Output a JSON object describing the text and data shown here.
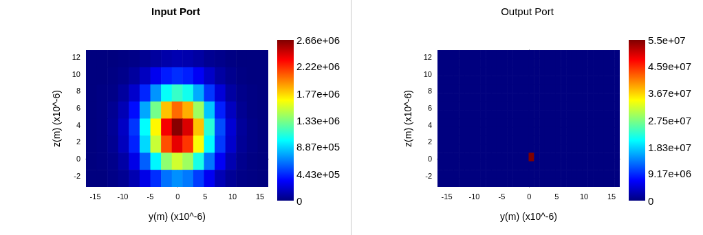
{
  "chart_data": [
    {
      "type": "heatmap",
      "title": "Input Port",
      "xlabel": "y(m) (x10^-6)",
      "ylabel": "z(m) (x10^-6)",
      "xlim": [
        -16.7,
        16.5
      ],
      "xticks": [
        -15,
        -10,
        -5,
        0,
        5,
        10,
        15
      ],
      "ylim": [
        -3.3,
        12.8
      ],
      "yticks": [
        -2,
        0,
        2,
        4,
        6,
        8,
        10,
        12
      ],
      "clim": [
        0,
        2660000
      ],
      "cticks": [
        {
          "value": 0,
          "label": "0"
        },
        {
          "value": 443000,
          "label": "4.43e+05"
        },
        {
          "value": 887000,
          "label": "8.87e+05"
        },
        {
          "value": 1330000,
          "label": "1.33e+06"
        },
        {
          "value": 1770000,
          "label": "1.77e+06"
        },
        {
          "value": 2220000,
          "label": "2.22e+06"
        },
        {
          "value": 2660000,
          "label": "2.66e+06"
        }
      ],
      "cells": [
        [
          0,
          0,
          0,
          10000,
          20000,
          50000,
          80000,
          110000,
          130000,
          120000,
          90000,
          50000,
          30000,
          10000,
          0,
          0,
          0
        ],
        [
          0,
          0,
          10000,
          30000,
          80000,
          170000,
          290000,
          400000,
          450000,
          410000,
          310000,
          190000,
          90000,
          40000,
          10000,
          0,
          0
        ],
        [
          0,
          10000,
          20000,
          80000,
          200000,
          430000,
          720000,
          1010000,
          1140000,
          1040000,
          780000,
          470000,
          230000,
          90000,
          30000,
          10000,
          0
        ],
        [
          0,
          10000,
          50000,
          140000,
          360000,
          770000,
          1300000,
          1820000,
          2050000,
          1870000,
          1410000,
          850000,
          410000,
          170000,
          50000,
          10000,
          0
        ],
        [
          0,
          10000,
          60000,
          180000,
          470000,
          1000000,
          1680000,
          2350000,
          2640000,
          2420000,
          1820000,
          1100000,
          530000,
          220000,
          70000,
          20000,
          0
        ],
        [
          0,
          10000,
          50000,
          160000,
          420000,
          900000,
          1520000,
          2120000,
          2390000,
          2190000,
          1650000,
          990000,
          480000,
          200000,
          60000,
          20000,
          0
        ],
        [
          0,
          10000,
          30000,
          100000,
          270000,
          580000,
          980000,
          1370000,
          1540000,
          1410000,
          1060000,
          640000,
          310000,
          130000,
          40000,
          10000,
          0
        ],
        [
          0,
          0,
          20000,
          50000,
          130000,
          270000,
          450000,
          630000,
          710000,
          650000,
          490000,
          300000,
          140000,
          60000,
          20000,
          10000,
          0
        ]
      ]
    },
    {
      "type": "heatmap",
      "title": "Output Port",
      "xlabel": "y(m) (x10^-6)",
      "ylabel": "z(m) (x10^-6)",
      "xlim": [
        -16.7,
        16.5
      ],
      "xticks": [
        -15,
        -10,
        -5,
        0,
        5,
        10,
        15
      ],
      "ylim": [
        -3.3,
        12.8
      ],
      "yticks": [
        -2,
        0,
        2,
        4,
        6,
        8,
        10,
        12
      ],
      "clim": [
        0,
        55000000
      ],
      "cticks": [
        {
          "value": 0,
          "label": "0"
        },
        {
          "value": 9170000,
          "label": "9.17e+06"
        },
        {
          "value": 18300000,
          "label": "1.83e+07"
        },
        {
          "value": 27500000,
          "label": "2.75e+07"
        },
        {
          "value": 36700000,
          "label": "3.67e+07"
        },
        {
          "value": 45900000,
          "label": "4.59e+07"
        },
        {
          "value": 55000000,
          "label": "5.5e+07"
        }
      ],
      "cells": [
        [
          0,
          0,
          0,
          0,
          0,
          0,
          0,
          0,
          0,
          0,
          0,
          0,
          0,
          0,
          0,
          0,
          0,
          0,
          0,
          0,
          0,
          0,
          0,
          0,
          0,
          0,
          0,
          0,
          0,
          0,
          0,
          0,
          0,
          0
        ],
        [
          0,
          0,
          0,
          0,
          0,
          0,
          0,
          0,
          0,
          0,
          0,
          0,
          0,
          0,
          0,
          0,
          0,
          0,
          0,
          0,
          0,
          0,
          0,
          0,
          0,
          0,
          0,
          0,
          0,
          0,
          0,
          0,
          0,
          0
        ],
        [
          0,
          0,
          0,
          0,
          0,
          0,
          0,
          0,
          0,
          0,
          0,
          0,
          0,
          0,
          0,
          0,
          0,
          0,
          0,
          0,
          0,
          0,
          0,
          0,
          0,
          0,
          0,
          0,
          0,
          0,
          0,
          0,
          0,
          0
        ],
        [
          0,
          0,
          0,
          0,
          0,
          0,
          0,
          0,
          0,
          0,
          0,
          0,
          0,
          0,
          0,
          0,
          0,
          0,
          0,
          0,
          0,
          0,
          0,
          0,
          0,
          0,
          0,
          0,
          0,
          0,
          0,
          0,
          0,
          0
        ],
        [
          0,
          0,
          0,
          0,
          0,
          0,
          0,
          0,
          0,
          0,
          0,
          0,
          0,
          0,
          0,
          0,
          0,
          0,
          0,
          0,
          0,
          0,
          0,
          0,
          0,
          0,
          0,
          0,
          0,
          0,
          0,
          0,
          0,
          0
        ],
        [
          0,
          0,
          0,
          0,
          0,
          0,
          0,
          0,
          0,
          0,
          0,
          0,
          0,
          0,
          0,
          0,
          0,
          0,
          0,
          0,
          0,
          0,
          0,
          0,
          0,
          0,
          0,
          0,
          0,
          0,
          0,
          0,
          0,
          0
        ],
        [
          0,
          0,
          0,
          0,
          0,
          0,
          0,
          0,
          0,
          0,
          0,
          0,
          0,
          0,
          0,
          0,
          0,
          0,
          0,
          0,
          0,
          0,
          0,
          0,
          0,
          0,
          0,
          0,
          0,
          0,
          0,
          0,
          0,
          0
        ],
        [
          0,
          0,
          0,
          0,
          0,
          0,
          0,
          0,
          0,
          0,
          0,
          0,
          0,
          0,
          0,
          0,
          0,
          0,
          0,
          0,
          0,
          0,
          0,
          0,
          0,
          0,
          0,
          0,
          0,
          0,
          0,
          0,
          0,
          0
        ],
        [
          0,
          0,
          0,
          0,
          0,
          0,
          0,
          0,
          0,
          0,
          0,
          0,
          0,
          0,
          0,
          0,
          0,
          0,
          0,
          0,
          0,
          0,
          0,
          0,
          0,
          0,
          0,
          0,
          0,
          0,
          0,
          0,
          0,
          0
        ],
        [
          0,
          0,
          0,
          0,
          0,
          0,
          0,
          0,
          0,
          0,
          0,
          0,
          0,
          0,
          0,
          0,
          0,
          0,
          0,
          0,
          0,
          0,
          0,
          0,
          0,
          0,
          0,
          0,
          0,
          0,
          0,
          0,
          0,
          0
        ],
        [
          0,
          0,
          0,
          0,
          0,
          0,
          0,
          0,
          0,
          0,
          0,
          0,
          0,
          0,
          0,
          0,
          0,
          0,
          0,
          0,
          0,
          0,
          0,
          0,
          0,
          0,
          0,
          0,
          0,
          0,
          0,
          0,
          0,
          0
        ],
        [
          0,
          0,
          0,
          0,
          0,
          0,
          0,
          0,
          0,
          0,
          0,
          0,
          0,
          0,
          0,
          0,
          0,
          0,
          0,
          0,
          0,
          0,
          0,
          0,
          0,
          0,
          0,
          0,
          0,
          0,
          0,
          0,
          0,
          0
        ],
        [
          0,
          0,
          0,
          0,
          0,
          0,
          0,
          0,
          0,
          0,
          0,
          0,
          0,
          0,
          0,
          0,
          0,
          55000000,
          0,
          0,
          0,
          0,
          0,
          0,
          0,
          0,
          0,
          0,
          0,
          0,
          0,
          0,
          0,
          0
        ],
        [
          0,
          0,
          0,
          0,
          0,
          0,
          0,
          0,
          0,
          0,
          0,
          0,
          0,
          0,
          0,
          0,
          0,
          0,
          0,
          0,
          0,
          0,
          0,
          0,
          0,
          0,
          0,
          0,
          0,
          0,
          0,
          0,
          0,
          0
        ],
        [
          0,
          0,
          0,
          0,
          0,
          0,
          0,
          0,
          0,
          0,
          0,
          0,
          0,
          0,
          0,
          0,
          0,
          0,
          0,
          0,
          0,
          0,
          0,
          0,
          0,
          0,
          0,
          0,
          0,
          0,
          0,
          0,
          0,
          0
        ],
        [
          0,
          0,
          0,
          0,
          0,
          0,
          0,
          0,
          0,
          0,
          0,
          0,
          0,
          0,
          0,
          0,
          0,
          0,
          0,
          0,
          0,
          0,
          0,
          0,
          0,
          0,
          0,
          0,
          0,
          0,
          0,
          0,
          0,
          0
        ]
      ]
    }
  ]
}
